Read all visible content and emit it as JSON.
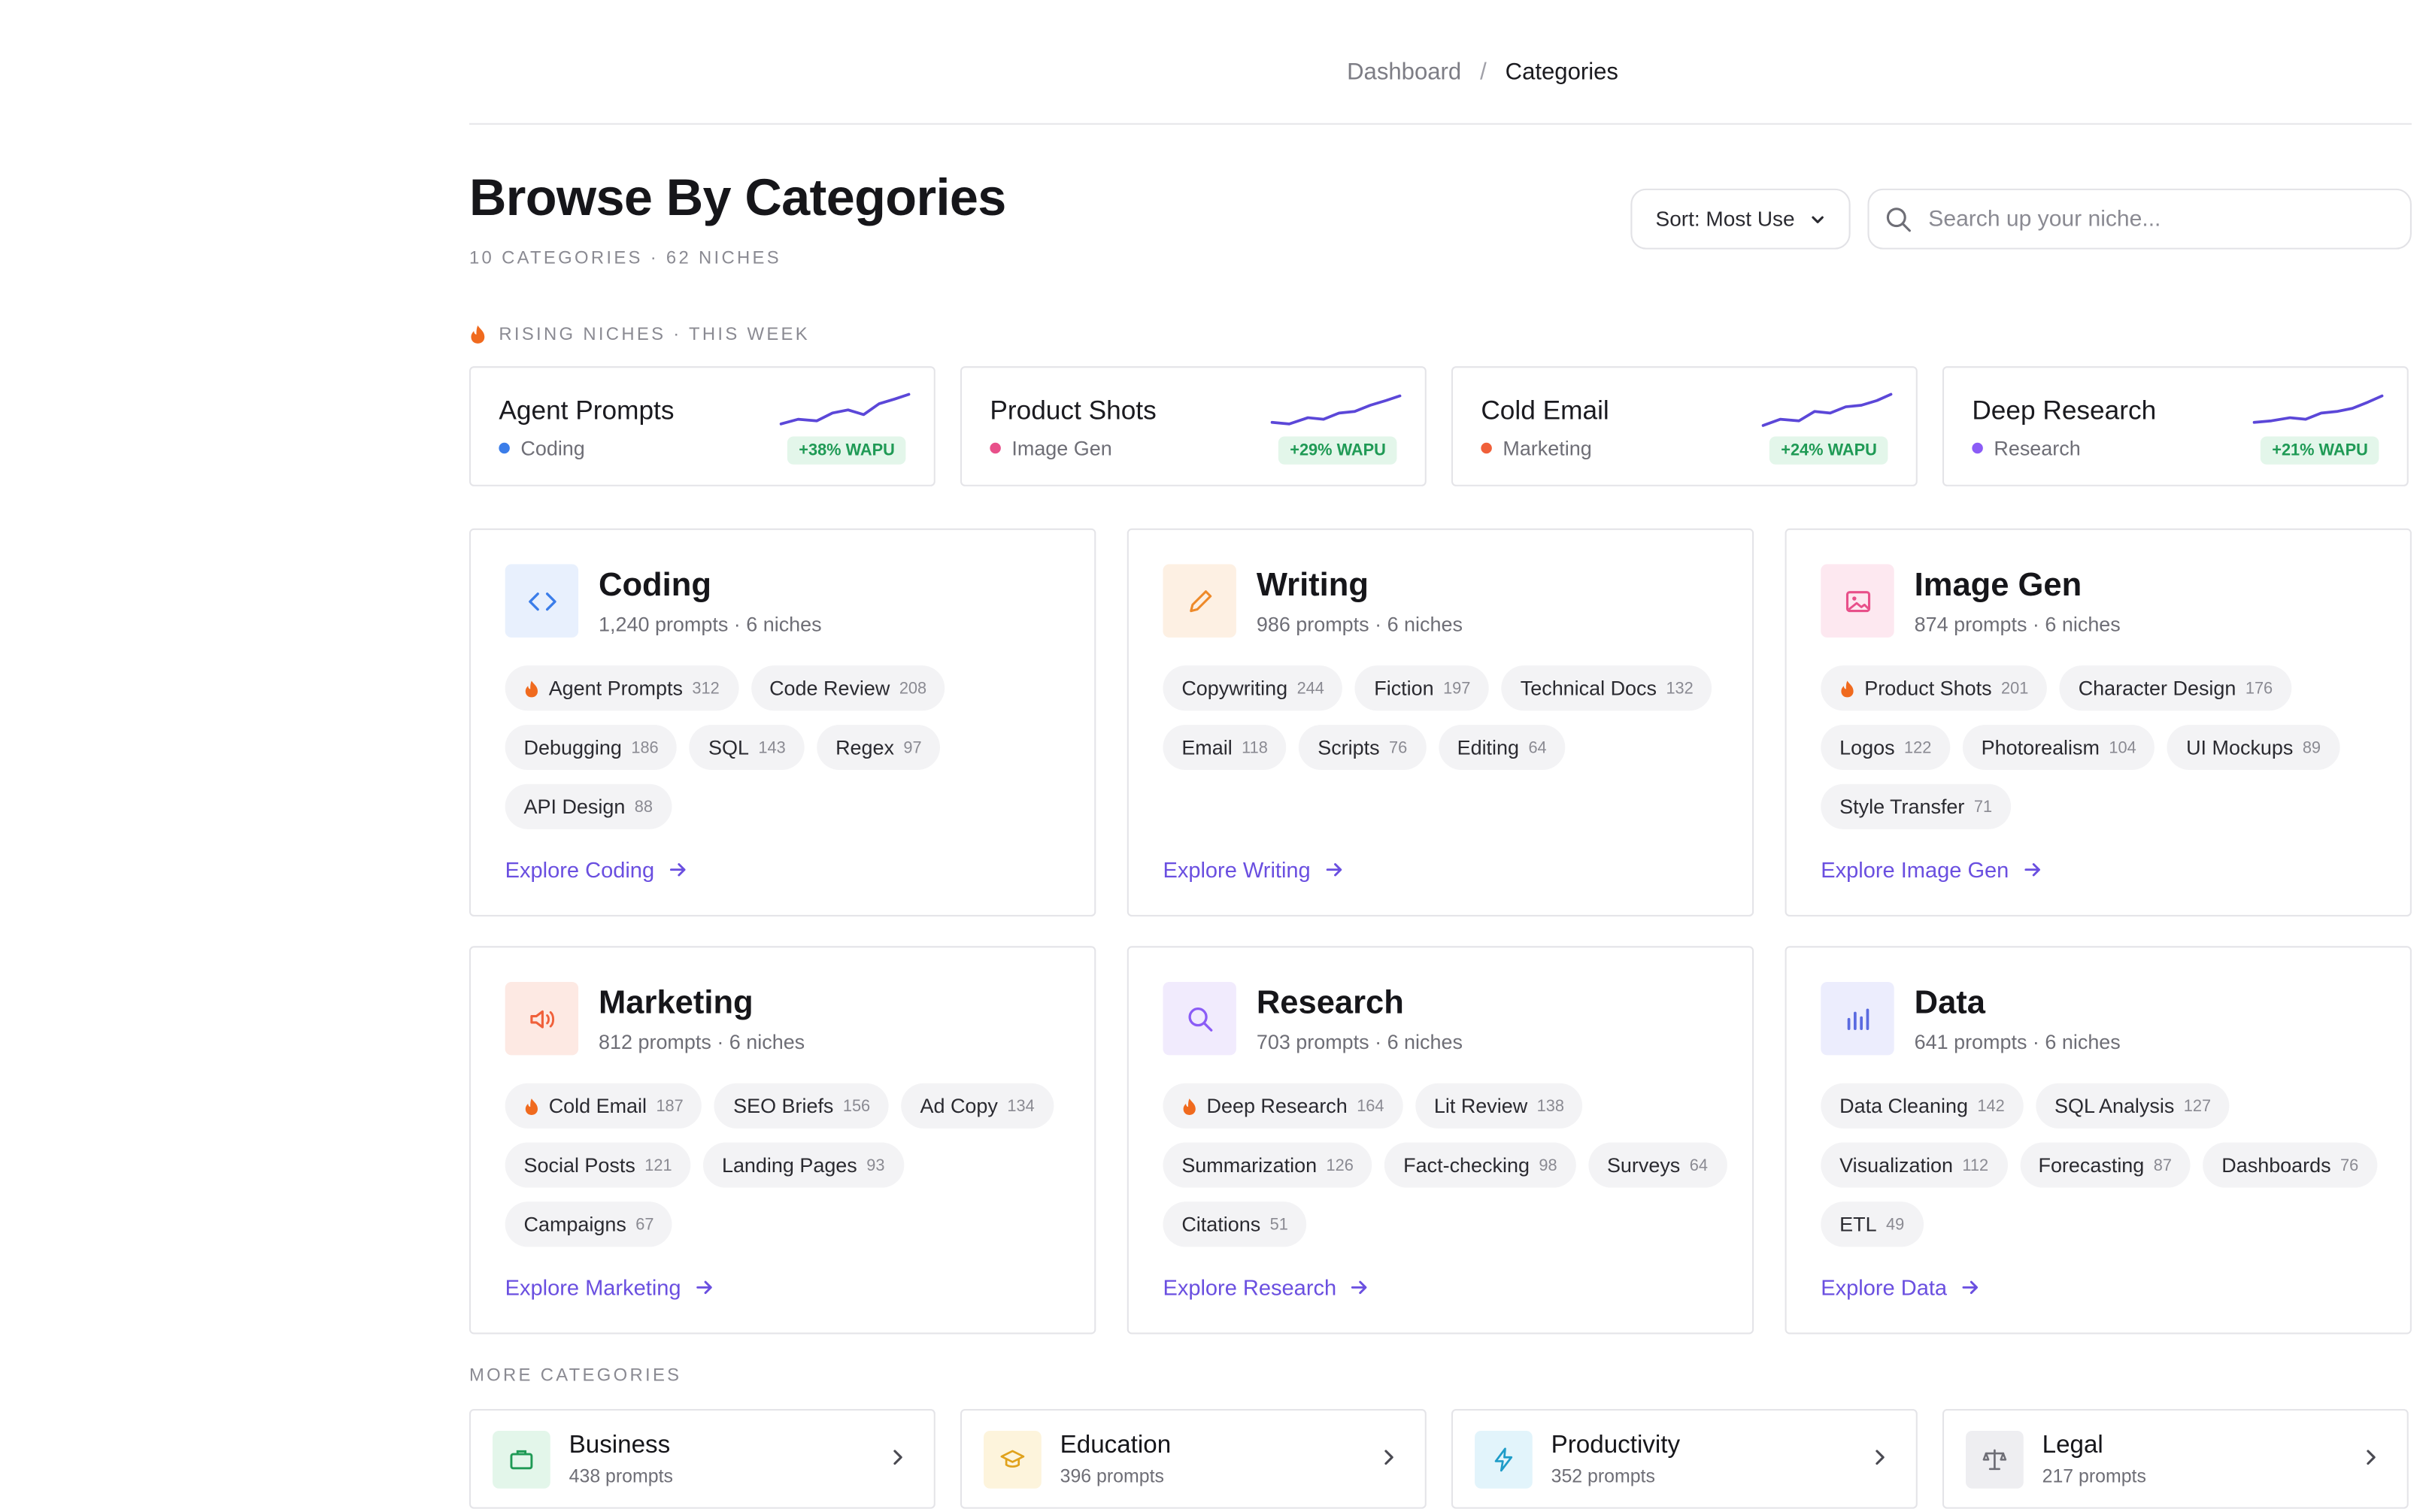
{
  "breadcrumb": {
    "parent": "Dashboard",
    "separator": "/",
    "current": "Categories"
  },
  "header": {
    "title": "Browse By Categories",
    "subtitle": "10 CATEGORIES · 62 NICHES",
    "sort_label": "Sort: Most Use",
    "search_placeholder": "Search up your niche..."
  },
  "rising": {
    "label": "RISING NICHES · THIS WEEK",
    "items": [
      {
        "title": "Agent Prompts",
        "category": "Coding",
        "dot_color": "#3b7de9",
        "badge": "+38% WAPU"
      },
      {
        "title": "Product Shots",
        "category": "Image Gen",
        "dot_color": "#e8508a",
        "badge": "+29% WAPU"
      },
      {
        "title": "Cold Email",
        "category": "Marketing",
        "dot_color": "#f0603a",
        "badge": "+24% WAPU"
      },
      {
        "title": "Deep Research",
        "category": "Research",
        "dot_color": "#8b5cf6",
        "badge": "+21% WAPU"
      }
    ]
  },
  "categories": [
    {
      "name": "Coding",
      "meta": "1,240 prompts · 6 niches",
      "icon": "code-icon",
      "explore": "Explore Coding",
      "chips": [
        {
          "label": "Agent Prompts",
          "count": "312",
          "hot": true
        },
        {
          "label": "Code Review",
          "count": "208"
        },
        {
          "label": "Debugging",
          "count": "186"
        },
        {
          "label": "SQL",
          "count": "143"
        },
        {
          "label": "Regex",
          "count": "97"
        },
        {
          "label": "API Design",
          "count": "88"
        }
      ]
    },
    {
      "name": "Writing",
      "meta": "986 prompts · 6 niches",
      "icon": "pencil-icon",
      "explore": "Explore Writing",
      "chips": [
        {
          "label": "Copywriting",
          "count": "244"
        },
        {
          "label": "Fiction",
          "count": "197"
        },
        {
          "label": "Technical Docs",
          "count": "132"
        },
        {
          "label": "Email",
          "count": "118"
        },
        {
          "label": "Scripts",
          "count": "76"
        },
        {
          "label": "Editing",
          "count": "64"
        }
      ]
    },
    {
      "name": "Image Gen",
      "meta": "874 prompts · 6 niches",
      "icon": "image-icon",
      "explore": "Explore Image Gen",
      "chips": [
        {
          "label": "Product Shots",
          "count": "201",
          "hot": true
        },
        {
          "label": "Character Design",
          "count": "176"
        },
        {
          "label": "Logos",
          "count": "122"
        },
        {
          "label": "Photorealism",
          "count": "104"
        },
        {
          "label": "UI Mockups",
          "count": "89"
        },
        {
          "label": "Style Transfer",
          "count": "71"
        }
      ]
    },
    {
      "name": "Marketing",
      "meta": "812 prompts · 6 niches",
      "icon": "megaphone-icon",
      "explore": "Explore Marketing",
      "chips": [
        {
          "label": "Cold Email",
          "count": "187",
          "hot": true
        },
        {
          "label": "SEO Briefs",
          "count": "156"
        },
        {
          "label": "Ad Copy",
          "count": "134"
        },
        {
          "label": "Social Posts",
          "count": "121"
        },
        {
          "label": "Landing Pages",
          "count": "93"
        },
        {
          "label": "Campaigns",
          "count": "67"
        }
      ]
    },
    {
      "name": "Research",
      "meta": "703 prompts · 6 niches",
      "icon": "magnifier-icon",
      "explore": "Explore Research",
      "chips": [
        {
          "label": "Deep Research",
          "count": "164",
          "hot": true
        },
        {
          "label": "Lit Review",
          "count": "138"
        },
        {
          "label": "Summarization",
          "count": "126"
        },
        {
          "label": "Fact-checking",
          "count": "98"
        },
        {
          "label": "Surveys",
          "count": "64"
        },
        {
          "label": "Citations",
          "count": "51"
        }
      ]
    },
    {
      "name": "Data",
      "meta": "641 prompts · 6 niches",
      "icon": "bar-chart-icon",
      "explore": "Explore Data",
      "chips": [
        {
          "label": "Data Cleaning",
          "count": "142"
        },
        {
          "label": "SQL Analysis",
          "count": "127"
        },
        {
          "label": "Visualization",
          "count": "112"
        },
        {
          "label": "Forecasting",
          "count": "87"
        },
        {
          "label": "Dashboards",
          "count": "76"
        },
        {
          "label": "ETL",
          "count": "49"
        }
      ]
    }
  ],
  "more": {
    "label": "MORE CATEGORIES",
    "items": [
      {
        "name": "Business",
        "meta": "438 prompts",
        "icon": "briefcase-icon"
      },
      {
        "name": "Education",
        "meta": "396 prompts",
        "icon": "graduation-cap-icon"
      },
      {
        "name": "Productivity",
        "meta": "352 prompts",
        "icon": "lightning-icon"
      },
      {
        "name": "Legal",
        "meta": "217 prompts",
        "icon": "scales-icon"
      }
    ]
  },
  "colors": {
    "accent": "#6a4fe0",
    "badge_green": "#1f9a55",
    "flame": "#f06a1e"
  }
}
